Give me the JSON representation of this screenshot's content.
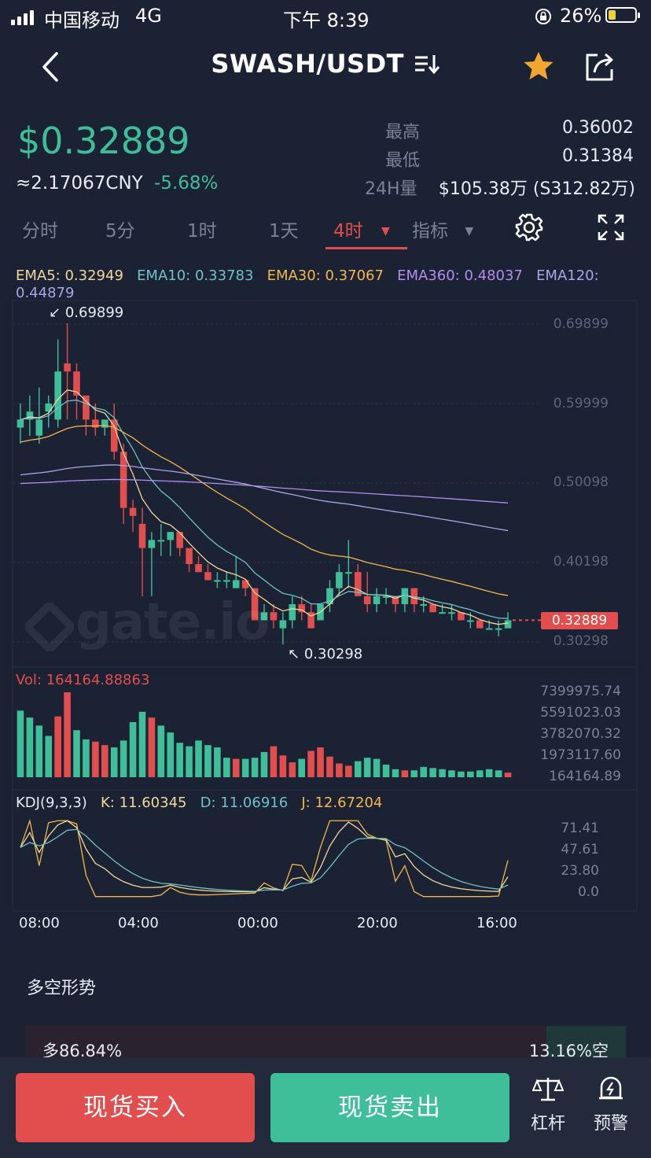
{
  "status_bar": {
    "carrier": "中国移动",
    "network": "4G",
    "time": "下午 8:39",
    "battery": "26%"
  },
  "header": {
    "pair": "SWASH/USDT"
  },
  "ticker": {
    "price": "$0.32889",
    "cny": "≈2.17067CNY",
    "change": "-5.68%",
    "high_label": "最高",
    "high": "0.36002",
    "low_label": "最低",
    "low": "0.31384",
    "vol_label": "24H量",
    "vol": "$105.38万 (S312.82万)"
  },
  "tabs": [
    "分时",
    "5分",
    "1时",
    "1天",
    "4时",
    "指标"
  ],
  "active_tab": "4时",
  "indicators": {
    "ema5": "EMA5: 0.32949",
    "ema10": "EMA10: 0.33783",
    "ema30": "EMA30: 0.37067",
    "ema360": "EMA360: 0.48037",
    "ema120": "EMA120:",
    "ema120_value": "0.44879"
  },
  "price_axis": [
    "0.69899",
    "0.59999",
    "0.50098",
    "0.40198",
    "0.30298"
  ],
  "high_marker": "0.69899",
  "low_marker": "0.30298",
  "last_price_tag": "0.32889",
  "watermark": "gate.io",
  "volume_label": "Vol: 164164.88863",
  "volume_axis": [
    "7399975.74",
    "5591023.03",
    "3782070.32",
    "1973117.60",
    "164164.89"
  ],
  "kdj": {
    "label": "KDJ(9,3,3)",
    "k": "K: 11.60345",
    "d": "D: 11.06916",
    "j": "J: 12.67204"
  },
  "kdj_axis": [
    "71.41",
    "47.61",
    "23.80",
    "0.0"
  ],
  "time_axis": [
    "08:00",
    "04:00",
    "00:00",
    "20:00",
    "16:00"
  ],
  "trend": {
    "title": "多空形势",
    "long": "多86.84%",
    "short": "13.16%空",
    "long_fraction": 0.8684
  },
  "bottom_bar": {
    "buy": "现货买入",
    "sell": "现货卖出",
    "leverage": "杠杆",
    "alert": "预警"
  },
  "colors": {
    "up": "#3fbf99",
    "down": "#e24e4e",
    "ema5": "#f0d89a",
    "ema10": "#6fc0c9",
    "ema30": "#f2b84b",
    "ema360": "#b48df0",
    "ema120": "#a9a4e6",
    "bg": "#1b2234"
  },
  "chart_data": {
    "type": "candlestick",
    "timeframe": "4时",
    "x_ticks": [
      "08:00",
      "04:00",
      "00:00",
      "20:00",
      "16:00"
    ],
    "ylim": [
      0.30298,
      0.69899
    ],
    "candles_ohlc": [
      [
        0.57,
        0.6,
        0.55,
        0.58
      ],
      [
        0.58,
        0.61,
        0.56,
        0.59
      ],
      [
        0.56,
        0.62,
        0.55,
        0.58
      ],
      [
        0.59,
        0.61,
        0.57,
        0.6
      ],
      [
        0.58,
        0.68,
        0.57,
        0.64
      ],
      [
        0.65,
        0.7,
        0.58,
        0.64
      ],
      [
        0.64,
        0.65,
        0.58,
        0.61
      ],
      [
        0.61,
        0.61,
        0.56,
        0.58
      ],
      [
        0.58,
        0.6,
        0.56,
        0.57
      ],
      [
        0.57,
        0.58,
        0.56,
        0.58
      ],
      [
        0.58,
        0.6,
        0.53,
        0.54
      ],
      [
        0.54,
        0.55,
        0.45,
        0.47
      ],
      [
        0.47,
        0.48,
        0.44,
        0.46
      ],
      [
        0.45,
        0.47,
        0.36,
        0.42
      ],
      [
        0.42,
        0.44,
        0.36,
        0.43
      ],
      [
        0.43,
        0.45,
        0.41,
        0.43
      ],
      [
        0.43,
        0.44,
        0.41,
        0.44
      ],
      [
        0.44,
        0.44,
        0.41,
        0.42
      ],
      [
        0.42,
        0.42,
        0.39,
        0.4
      ],
      [
        0.4,
        0.41,
        0.39,
        0.39
      ],
      [
        0.39,
        0.4,
        0.38,
        0.38
      ],
      [
        0.38,
        0.39,
        0.37,
        0.38
      ],
      [
        0.38,
        0.39,
        0.37,
        0.38
      ],
      [
        0.37,
        0.41,
        0.37,
        0.38
      ],
      [
        0.38,
        0.38,
        0.36,
        0.37
      ],
      [
        0.37,
        0.37,
        0.33,
        0.33
      ],
      [
        0.33,
        0.35,
        0.33,
        0.34
      ],
      [
        0.34,
        0.35,
        0.32,
        0.33
      ],
      [
        0.32,
        0.34,
        0.3,
        0.33
      ],
      [
        0.33,
        0.36,
        0.32,
        0.35
      ],
      [
        0.35,
        0.36,
        0.33,
        0.34
      ],
      [
        0.34,
        0.35,
        0.32,
        0.32
      ],
      [
        0.33,
        0.35,
        0.33,
        0.35
      ],
      [
        0.35,
        0.38,
        0.34,
        0.37
      ],
      [
        0.37,
        0.4,
        0.36,
        0.39
      ],
      [
        0.39,
        0.43,
        0.37,
        0.39
      ],
      [
        0.39,
        0.4,
        0.36,
        0.36
      ],
      [
        0.36,
        0.39,
        0.34,
        0.35
      ],
      [
        0.35,
        0.37,
        0.34,
        0.36
      ],
      [
        0.36,
        0.37,
        0.35,
        0.36
      ],
      [
        0.36,
        0.36,
        0.34,
        0.35
      ],
      [
        0.35,
        0.37,
        0.34,
        0.37
      ],
      [
        0.37,
        0.37,
        0.34,
        0.35
      ],
      [
        0.35,
        0.36,
        0.34,
        0.35
      ],
      [
        0.35,
        0.35,
        0.34,
        0.34
      ],
      [
        0.34,
        0.35,
        0.34,
        0.34
      ],
      [
        0.34,
        0.35,
        0.33,
        0.34
      ],
      [
        0.34,
        0.34,
        0.33,
        0.33
      ],
      [
        0.33,
        0.34,
        0.32,
        0.33
      ],
      [
        0.33,
        0.33,
        0.32,
        0.32
      ],
      [
        0.32,
        0.33,
        0.32,
        0.32
      ],
      [
        0.32,
        0.33,
        0.31,
        0.32
      ],
      [
        0.32,
        0.34,
        0.32,
        0.33
      ]
    ],
    "volume_ylim": [
      0,
      7399975.74
    ],
    "volume_up": [
      true,
      true,
      true,
      true,
      false,
      false,
      true,
      true,
      false,
      false,
      true,
      true,
      true,
      true,
      false,
      true,
      true,
      true,
      true,
      true,
      true,
      true,
      true,
      false,
      true,
      true,
      true,
      false,
      false,
      false,
      true,
      false,
      false,
      false,
      false,
      false,
      true,
      true,
      true,
      true,
      true,
      false,
      true,
      true,
      true,
      true,
      true,
      true,
      true,
      true,
      true,
      true,
      false
    ],
    "volume": [
      5.8,
      5.2,
      4.5,
      3.6,
      5.3,
      7.4,
      4.1,
      3.3,
      3.1,
      2.8,
      2.6,
      3.2,
      4.8,
      5.7,
      5.2,
      4.5,
      3.9,
      3.0,
      2.7,
      3.2,
      2.8,
      2.6,
      1.7,
      1.6,
      1.6,
      1.7,
      2.2,
      2.7,
      1.9,
      1.3,
      1.6,
      2.3,
      2.6,
      1.8,
      1.2,
      1.0,
      1.4,
      1.7,
      1.6,
      1.1,
      0.7,
      0.6,
      0.6,
      0.9,
      0.8,
      0.7,
      0.6,
      0.5,
      0.5,
      0.6,
      0.7,
      0.6,
      0.4
    ]
  }
}
